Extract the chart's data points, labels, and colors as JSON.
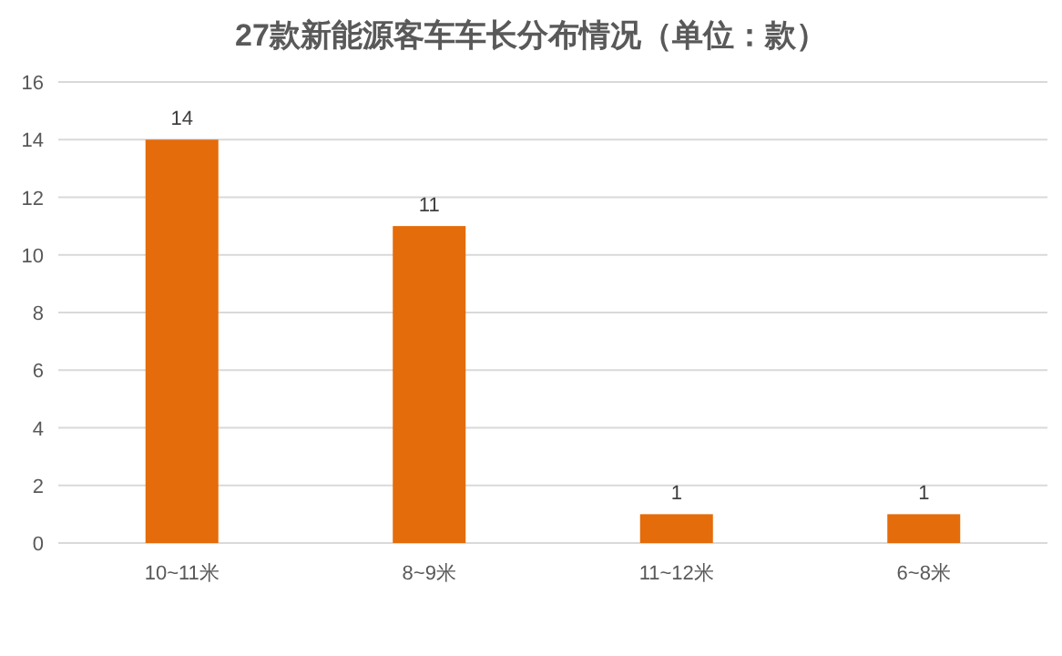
{
  "chart_data": {
    "type": "bar",
    "title": "27款新能源客车车长分布情况（单位：款）",
    "categories": [
      "10~11米",
      "8~9米",
      "11~12米",
      "6~8米"
    ],
    "values": [
      14,
      11,
      1,
      1
    ],
    "color": "#e46c0a",
    "ylim": [
      0,
      16
    ],
    "yticks": [
      0,
      2,
      4,
      6,
      8,
      10,
      12,
      14,
      16
    ],
    "grid": "y",
    "data_labels": true
  }
}
